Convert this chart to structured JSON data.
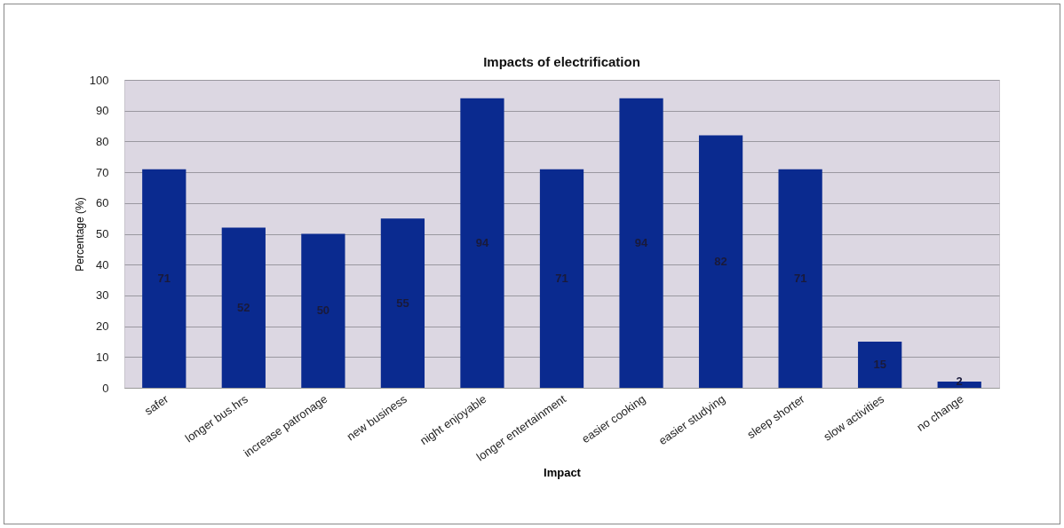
{
  "chart_data": {
    "type": "bar",
    "title": "Impacts of electrification",
    "xlabel": "Impact",
    "ylabel": "Percentage (%)",
    "categories": [
      "safer",
      "longer bus.hrs",
      "increase patronage",
      "new business",
      "night enjoyable",
      "longer entertainment",
      "easier cooking",
      "easier studying",
      "sleep shorter",
      "slow activities",
      "no change"
    ],
    "values": [
      71,
      52,
      50,
      55,
      94,
      71,
      94,
      82,
      71,
      15,
      2
    ],
    "color": "#0a2a8f",
    "ylim": [
      0,
      100
    ],
    "yticks": [
      0,
      10,
      20,
      30,
      40,
      50,
      60,
      70,
      80,
      90,
      100
    ],
    "grid": "y",
    "data_labels": true
  }
}
